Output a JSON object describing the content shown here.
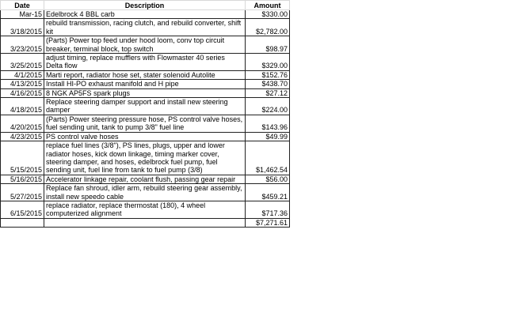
{
  "headers": {
    "date": "Date",
    "description": "Description",
    "amount": "Amount"
  },
  "rows": [
    {
      "date": "Mar-15",
      "description": "Edelbrock 4 BBL carb",
      "amount": "$330.00"
    },
    {
      "date": "3/18/2015",
      "description": "rebuild transmission, racing clutch, and rebuild converter, shift kit",
      "amount": "$2,782.00"
    },
    {
      "date": "3/23/2015",
      "description": "(Parts) Power top feed under hood loom, conv top circuit breaker, terminal block, top switch",
      "amount": "$98.97"
    },
    {
      "date": "3/25/2015",
      "description": "adjust timing, replace mufflers with Flowmaster 40 series Delta flow",
      "amount": "$329.00"
    },
    {
      "date": "4/1/2015",
      "description": "Marti report, radiator hose set, stater solenoid Autolite",
      "amount": "$152.76"
    },
    {
      "date": "4/13/2015",
      "description": "Install HI-PO exhaust manifold and H pipe",
      "amount": "$438.70"
    },
    {
      "date": "4/16/2015",
      "description": "8 NGK AP5FS spark plugs",
      "amount": "$27.12"
    },
    {
      "date": "4/18/2015",
      "description": "Replace steering damper support and install new steering damper",
      "amount": "$224.00"
    },
    {
      "date": "4/20/2015",
      "description": "(Parts) Power steering pressure hose, PS control valve hoses, fuel sending unit, tank to pump 3/8\" fuel line",
      "amount": "$143.96"
    },
    {
      "date": "4/23/2015",
      "description": "PS control valve hoses",
      "amount": "$49.99"
    },
    {
      "date": "5/15/2015",
      "description": "replace fuel lines (3/8\"), PS lines, plugs, upper and lower radiator hoses, kick down linkage, timing marker cover, steering damper, and hoses, edelbrock fuel pump, fuel sending unit, fuel line from tank to fuel pump (3/8)",
      "amount": "$1,462.54"
    },
    {
      "date": "5/16/2015",
      "description": "Accelerator linkage repair, coolant flush, passing gear repair",
      "amount": "$56.00"
    },
    {
      "date": "5/27/2015",
      "description": "Replace fan shroud, idler arm, rebuild steering gear assembly, install new speedo cable",
      "amount": "$459.21"
    },
    {
      "date": "6/15/2015",
      "description": "replace radiator, replace thermostat (180), 4 wheel computerized alignment",
      "amount": "$717.36"
    }
  ],
  "total": {
    "amount": "$7,271.61"
  }
}
